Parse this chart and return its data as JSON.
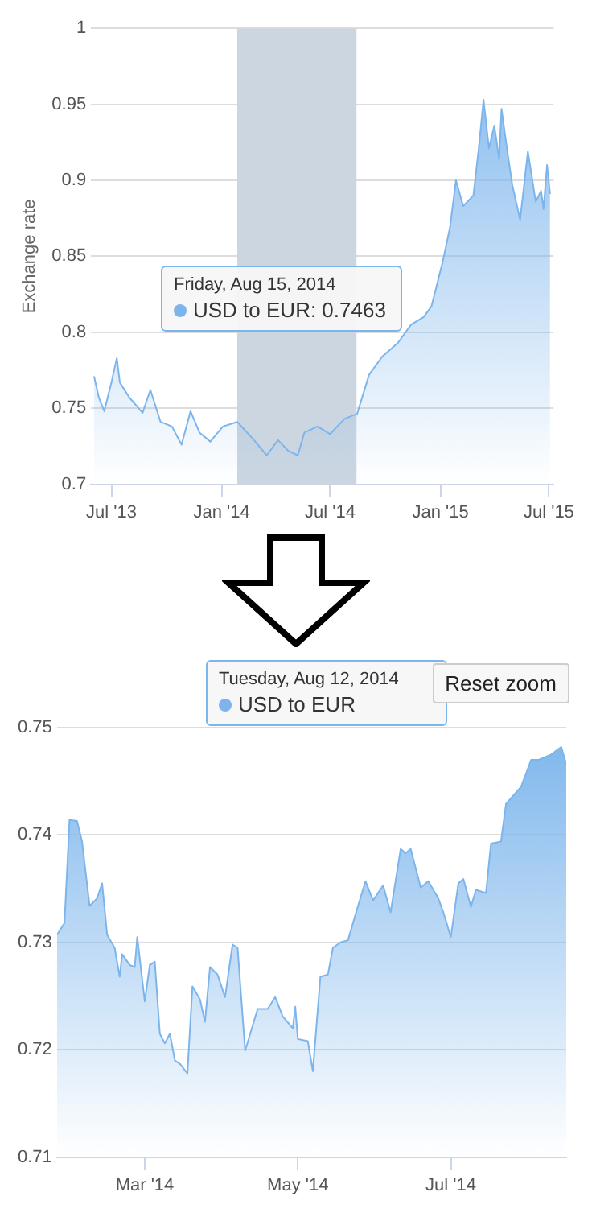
{
  "chart_data": [
    {
      "type": "area",
      "ylabel": "Exchange rate",
      "xlim": [
        "2013-05-28",
        "2015-07-09"
      ],
      "ylim": [
        0.7,
        1
      ],
      "yticks": [
        0.7,
        0.75,
        0.8,
        0.85,
        0.9,
        0.95,
        1
      ],
      "xticks": [
        {
          "value": "2013-07-01",
          "label": "Jul '13"
        },
        {
          "value": "2014-01-01",
          "label": "Jan '14"
        },
        {
          "value": "2014-07-01",
          "label": "Jul '14"
        },
        {
          "value": "2015-01-01",
          "label": "Jan '15"
        },
        {
          "value": "2015-07-01",
          "label": "Jul '15"
        }
      ],
      "grid": "y",
      "legend": false,
      "bands": [
        {
          "axis": "x",
          "from": "2014-01-27",
          "to": "2014-08-14",
          "color": "#ccd6e0"
        }
      ],
      "annotations": [
        "Friday, Aug 15, 2014",
        "USD to EUR: 0.7463"
      ],
      "series": [
        {
          "color": "#7cb5ec",
          "x": [
            "2013-06-02",
            "2013-06-10",
            "2013-06-19",
            "2013-07-01",
            "2013-07-10",
            "2013-07-15",
            "2013-07-31",
            "2013-08-22",
            "2013-09-04",
            "2013-09-21",
            "2013-10-10",
            "2013-10-26",
            "2013-11-10",
            "2013-11-25",
            "2013-12-13",
            "2014-01-03",
            "2014-01-27",
            "2014-02-24",
            "2014-03-17",
            "2014-04-05",
            "2014-04-22",
            "2014-05-08",
            "2014-05-19",
            "2014-06-10",
            "2014-07-01",
            "2014-07-25",
            "2014-08-15",
            "2014-09-04",
            "2014-09-26",
            "2014-10-22",
            "2014-11-13",
            "2014-12-04",
            "2014-12-17",
            "2015-01-04",
            "2015-01-17",
            "2015-01-27",
            "2015-02-08",
            "2015-02-25",
            "2015-03-06",
            "2015-03-14",
            "2015-03-23",
            "2015-04-01",
            "2015-04-09",
            "2015-04-13",
            "2015-04-22",
            "2015-05-01",
            "2015-05-14",
            "2015-05-27",
            "2015-06-09",
            "2015-06-18",
            "2015-06-22",
            "2015-06-28",
            "2015-07-03"
          ],
          "values": [
            0.771,
            0.757,
            0.748,
            0.767,
            0.783,
            0.767,
            0.757,
            0.747,
            0.762,
            0.741,
            0.738,
            0.726,
            0.748,
            0.734,
            0.728,
            0.738,
            0.741,
            0.729,
            0.719,
            0.729,
            0.722,
            0.719,
            0.734,
            0.738,
            0.733,
            0.743,
            0.7463,
            0.772,
            0.784,
            0.793,
            0.805,
            0.81,
            0.817,
            0.845,
            0.869,
            0.9,
            0.883,
            0.89,
            0.921,
            0.953,
            0.921,
            0.936,
            0.914,
            0.947,
            0.921,
            0.897,
            0.874,
            0.919,
            0.886,
            0.893,
            0.881,
            0.91,
            0.891
          ]
        }
      ]
    },
    {
      "type": "area",
      "xlim": [
        "2014-01-25",
        "2014-08-16"
      ],
      "ylim": [
        0.71,
        0.75
      ],
      "yticks": [
        0.71,
        0.72,
        0.73,
        0.74,
        0.75
      ],
      "xticks": [
        {
          "value": "2014-03-01",
          "label": "Mar '14"
        },
        {
          "value": "2014-05-01",
          "label": "May '14"
        },
        {
          "value": "2014-07-01",
          "label": "Jul '14"
        }
      ],
      "grid": "y",
      "legend": false,
      "annotations": [
        "Tuesday, Aug 12, 2014",
        "USD to EUR",
        "Reset zoom"
      ],
      "series": [
        {
          "color": "#7cb5ec",
          "x": [
            "2014-01-25",
            "2014-01-28",
            "2014-01-30",
            "2014-02-02",
            "2014-02-04",
            "2014-02-07",
            "2014-02-10",
            "2014-02-12",
            "2014-02-14",
            "2014-02-17",
            "2014-02-19",
            "2014-02-20",
            "2014-02-23",
            "2014-02-25",
            "2014-02-26",
            "2014-03-01",
            "2014-03-03",
            "2014-03-05",
            "2014-03-07",
            "2014-03-09",
            "2014-03-11",
            "2014-03-13",
            "2014-03-15",
            "2014-03-18",
            "2014-03-20",
            "2014-03-23",
            "2014-03-25",
            "2014-03-27",
            "2014-03-30",
            "2014-04-02",
            "2014-04-05",
            "2014-04-07",
            "2014-04-10",
            "2014-04-15",
            "2014-04-19",
            "2014-04-22",
            "2014-04-25",
            "2014-04-29",
            "2014-04-30",
            "2014-05-01",
            "2014-05-05",
            "2014-05-07",
            "2014-05-10",
            "2014-05-13",
            "2014-05-15",
            "2014-05-18",
            "2014-05-21",
            "2014-05-25",
            "2014-05-28",
            "2014-05-31",
            "2014-06-04",
            "2014-06-07",
            "2014-06-11",
            "2014-06-13",
            "2014-06-15",
            "2014-06-19",
            "2014-06-22",
            "2014-06-26",
            "2014-06-28",
            "2014-07-01",
            "2014-07-04",
            "2014-07-06",
            "2014-07-09",
            "2014-07-11",
            "2014-07-15",
            "2014-07-17",
            "2014-07-21",
            "2014-07-23",
            "2014-07-29",
            "2014-08-02",
            "2014-08-05",
            "2014-08-10",
            "2014-08-14",
            "2014-08-16"
          ],
          "values": [
            0.7307,
            0.7318,
            0.7414,
            0.7413,
            0.7394,
            0.7334,
            0.7341,
            0.7355,
            0.7307,
            0.7295,
            0.7268,
            0.7289,
            0.7279,
            0.7277,
            0.7305,
            0.7245,
            0.7279,
            0.7282,
            0.7215,
            0.7206,
            0.7215,
            0.719,
            0.7187,
            0.7178,
            0.7259,
            0.7247,
            0.7226,
            0.7277,
            0.727,
            0.7249,
            0.7298,
            0.7295,
            0.7199,
            0.7238,
            0.7238,
            0.7249,
            0.7231,
            0.722,
            0.724,
            0.721,
            0.7208,
            0.718,
            0.7268,
            0.727,
            0.7295,
            0.73,
            0.7302,
            0.7334,
            0.7357,
            0.7339,
            0.7353,
            0.7328,
            0.7387,
            0.7383,
            0.7387,
            0.7351,
            0.7357,
            0.7341,
            0.7328,
            0.7305,
            0.7355,
            0.7359,
            0.7333,
            0.7349,
            0.7346,
            0.7392,
            0.7394,
            0.7429,
            0.7445,
            0.747,
            0.747,
            0.7475,
            0.7482,
            0.7466
          ]
        }
      ]
    }
  ]
}
